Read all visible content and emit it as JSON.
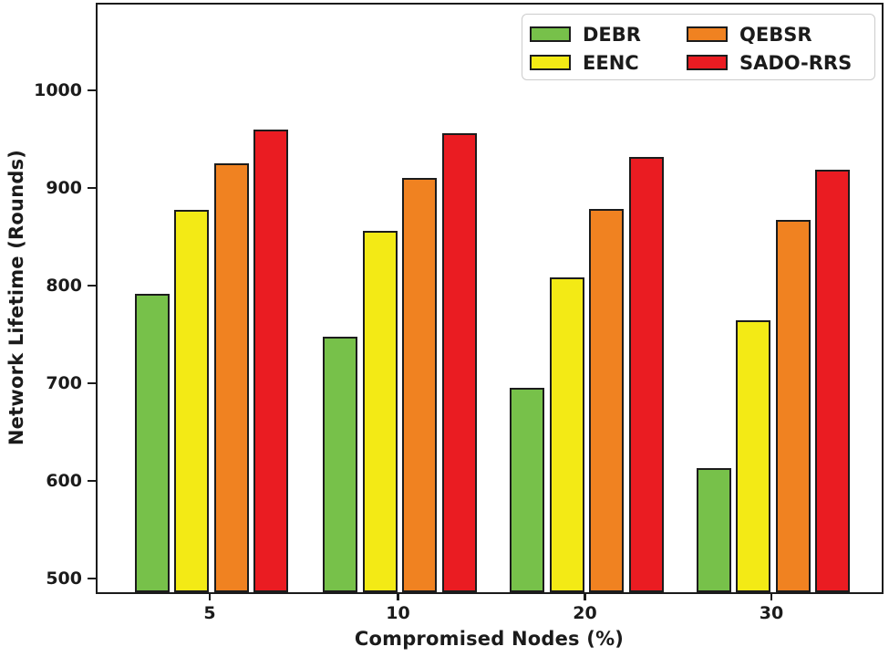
{
  "chart_data": {
    "type": "bar",
    "title": "",
    "xlabel": "Compromised Nodes (%)",
    "ylabel": "Network Lifetime (Rounds)",
    "categories": [
      "5",
      "10",
      "20",
      "30"
    ],
    "series": [
      {
        "name": "DEBR",
        "color": "#77C14A",
        "values": [
          792,
          748,
          696,
          614
        ]
      },
      {
        "name": "EENC",
        "color": "#F3EA15",
        "values": [
          878,
          857,
          809,
          765
        ]
      },
      {
        "name": "QEBSR",
        "color": "#F08221",
        "values": [
          926,
          911,
          879,
          868
        ]
      },
      {
        "name": "SADO-RRS",
        "color": "#EA1C22",
        "values": [
          960,
          957,
          932,
          919
        ]
      }
    ],
    "y_ticks": [
      500,
      600,
      700,
      800,
      900,
      1000
    ],
    "ylim": [
      487,
      1088
    ],
    "grid": false,
    "legend_position": "upper-right",
    "bar_edge_color": "#1c1c1c",
    "text_color": "#1b1b1b"
  }
}
